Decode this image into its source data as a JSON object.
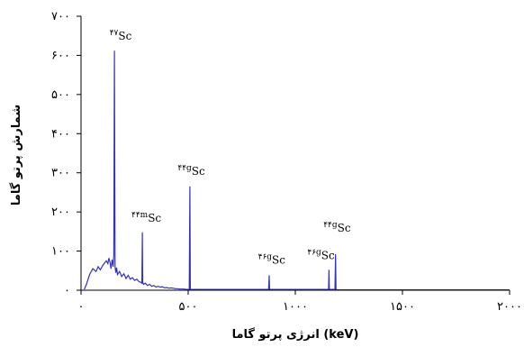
{
  "chart_data": {
    "type": "line",
    "title": "",
    "xlabel": "انرژی پرتو گاما (keV)",
    "ylabel": "شمارش پرتو گاما",
    "xlim": [
      0,
      2000
    ],
    "ylim": [
      0,
      700
    ],
    "x_ticks": [
      0,
      500,
      1000,
      1500,
      2000
    ],
    "x_tick_labels": [
      "۰",
      "۵۰۰",
      "۱۰۰۰",
      "۱۵۰۰",
      "۲۰۰۰"
    ],
    "y_ticks": [
      0,
      100,
      200,
      300,
      400,
      500,
      600,
      700
    ],
    "y_tick_labels": [
      "۰",
      "۱۰۰",
      "۲۰۰",
      "۳۰۰",
      "۴۰۰",
      "۵۰۰",
      "۶۰۰",
      "۷۰۰"
    ],
    "grid": false,
    "line_color": "#3333bb",
    "series": [
      {
        "x": [
          15,
          25,
          40,
          55,
          70,
          80,
          90,
          100,
          110,
          118,
          125,
          130,
          135,
          140,
          145,
          150,
          153,
          156,
          159,
          162,
          166,
          170,
          180,
          190,
          200,
          210,
          220,
          230,
          240,
          250,
          260,
          270,
          280,
          284,
          286,
          288,
          292,
          300,
          310,
          320,
          330,
          340,
          350,
          360,
          370,
          380,
          390,
          400,
          410,
          420,
          430,
          440,
          450,
          460,
          470,
          480,
          490,
          500,
          505,
          508,
          510,
          512,
          515,
          520,
          530,
          550,
          600,
          650,
          700,
          750,
          800,
          850,
          875,
          878,
          880,
          882,
          885,
          900,
          950,
          1000,
          1050,
          1100,
          1120,
          1125,
          1140,
          1150,
          1155,
          1157,
          1159,
          1162,
          1170,
          1180,
          1185,
          1188,
          1190,
          1192,
          1195,
          1210,
          1300,
          1400,
          1500,
          1600,
          1700,
          1800,
          1900,
          2000
        ],
        "y": [
          2,
          15,
          40,
          55,
          48,
          60,
          52,
          62,
          70,
          75,
          68,
          82,
          72,
          55,
          78,
          60,
          90,
          612,
          60,
          45,
          58,
          40,
          48,
          35,
          42,
          30,
          38,
          28,
          32,
          25,
          28,
          22,
          20,
          18,
          148,
          20,
          15,
          18,
          12,
          15,
          10,
          12,
          8,
          10,
          8,
          9,
          6,
          7,
          5,
          6,
          5,
          4,
          4,
          3,
          3,
          3,
          2,
          2,
          2,
          265,
          2,
          2,
          2,
          2,
          2,
          2,
          2,
          2,
          2,
          2,
          2,
          2,
          2,
          38,
          2,
          2,
          2,
          2,
          2,
          2,
          2,
          2,
          2,
          2,
          2,
          2,
          2,
          52,
          2,
          2,
          2,
          2,
          2,
          92,
          2,
          2,
          1,
          1,
          1,
          1,
          1,
          1,
          1,
          1,
          1,
          1
        ]
      }
    ],
    "annotations": [
      {
        "mass": "۴۷",
        "element": "Sc",
        "x": 185,
        "y": 640
      },
      {
        "mass": "۴۴m",
        "element": "Sc",
        "x": 305,
        "y": 175
      },
      {
        "mass": "۴۴g",
        "element": "Sc",
        "x": 515,
        "y": 295
      },
      {
        "mass": "۴۶g",
        "element": "Sc",
        "x": 890,
        "y": 68
      },
      {
        "mass": "۴۶g",
        "element": "Sc",
        "x": 1120,
        "y": 80
      },
      {
        "mass": "۴۴g",
        "element": "Sc",
        "x": 1195,
        "y": 150
      }
    ]
  }
}
